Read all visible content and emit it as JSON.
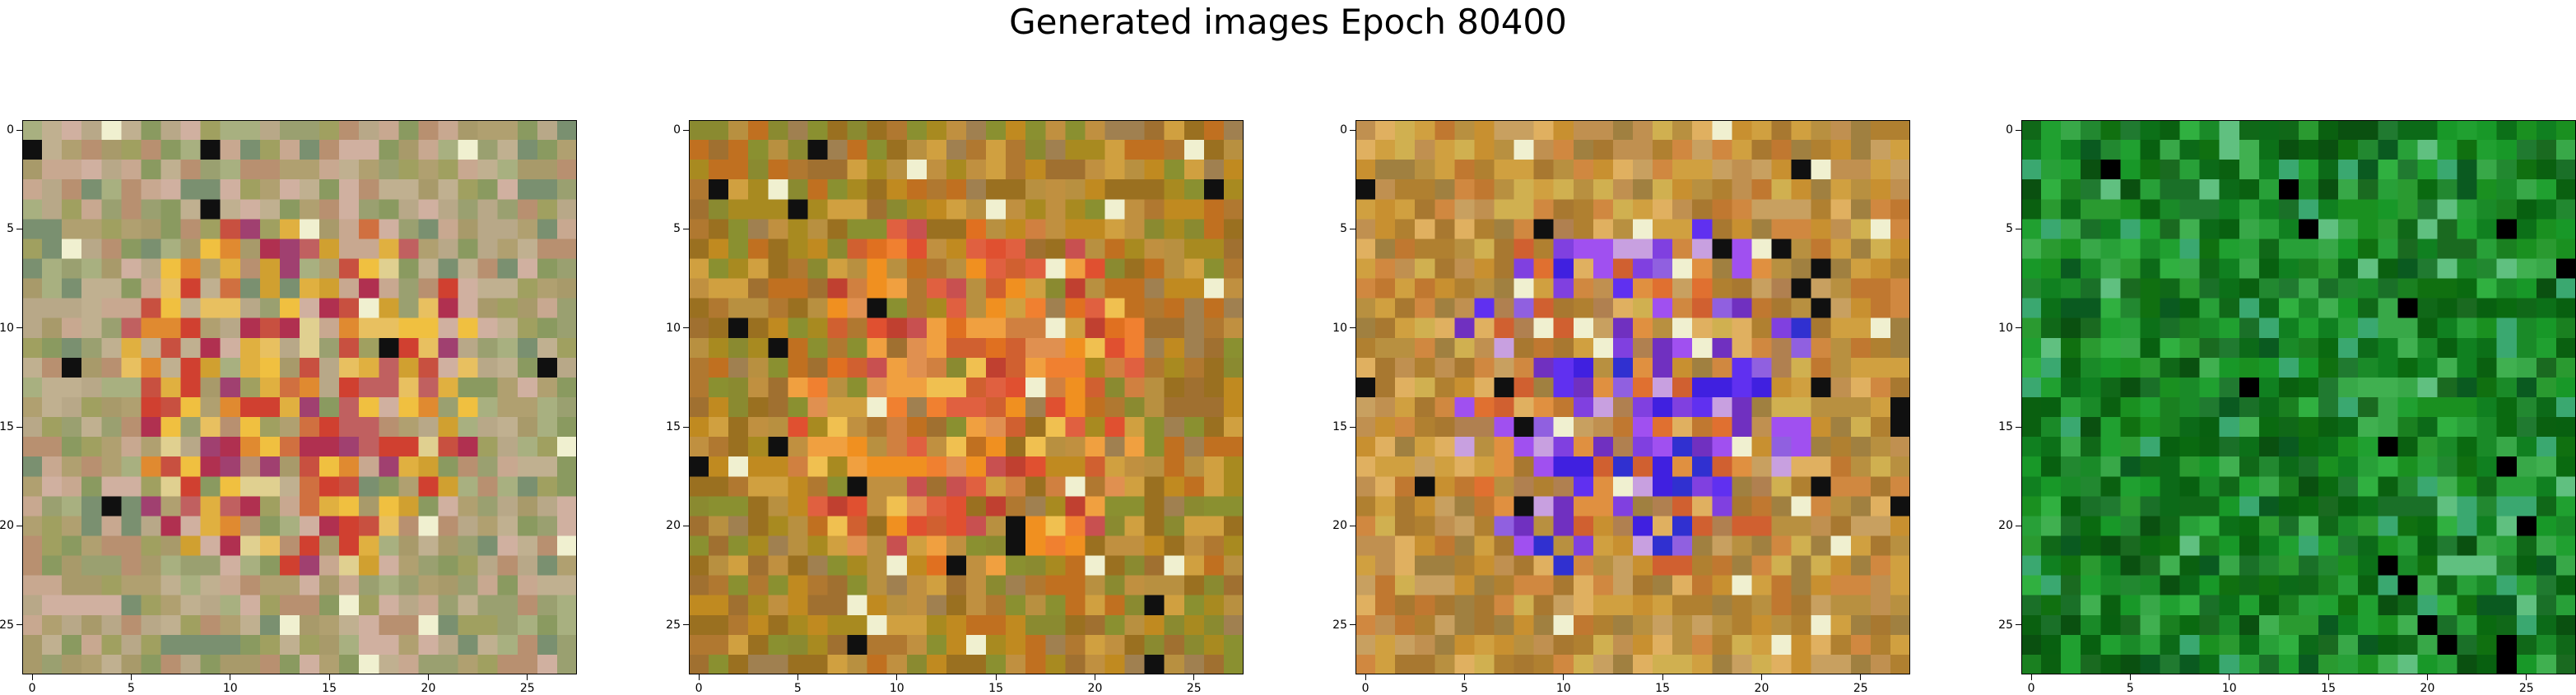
{
  "title": "Generated images Epoch 80400",
  "axis": {
    "x_ticks": [
      "0",
      "5",
      "10",
      "15",
      "20",
      "25"
    ],
    "y_ticks": [
      "0",
      "5",
      "10",
      "15",
      "20",
      "25"
    ]
  },
  "images": [
    {
      "name": "generated-image-1",
      "palette": "warm-mixed"
    },
    {
      "name": "generated-image-2",
      "palette": "orange-olive"
    },
    {
      "name": "generated-image-3",
      "palette": "orange-violet"
    },
    {
      "name": "generated-image-4",
      "palette": "green"
    }
  ]
}
